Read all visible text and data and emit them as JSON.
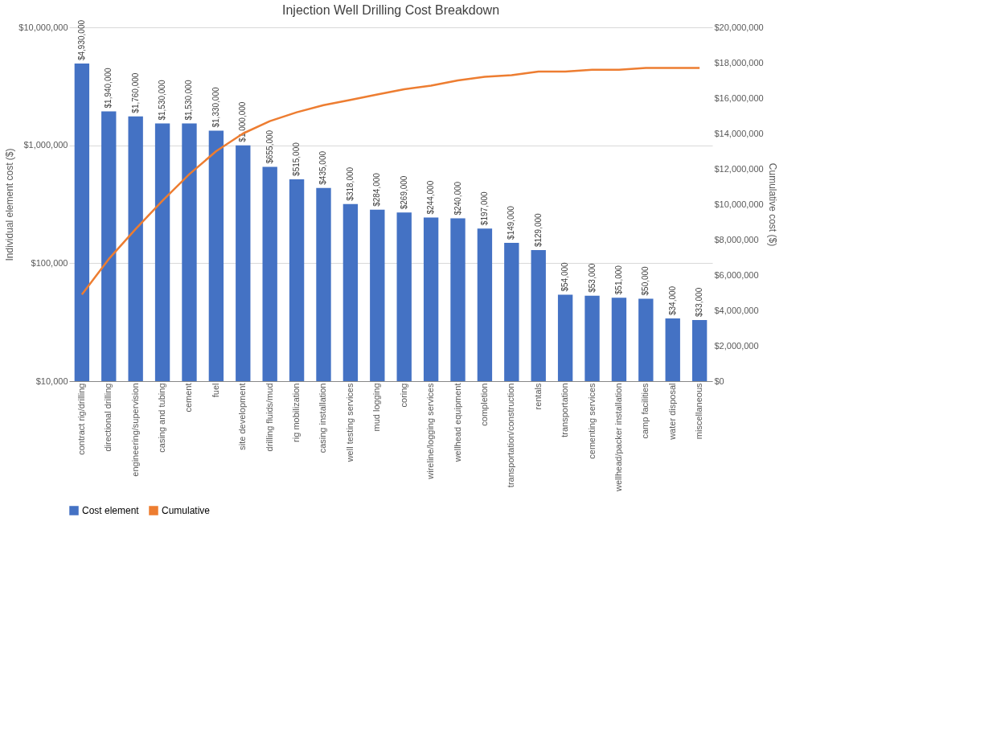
{
  "chart_data": {
    "type": "bar",
    "title": "Injection Well Drilling Cost Breakdown",
    "ylabel": "Individual element cost ($)",
    "y2label": "Cumulative cost ($)",
    "categories": [
      "contract rig/drilling",
      "directional drilling",
      "engineering/supervision",
      "casing and tubing",
      "cement",
      "fuel",
      "site development",
      "drilling fluids/mud",
      "rig mobilization",
      "casing installation",
      "well testing services",
      "mud logging",
      "coring",
      "wireline/logging services",
      "wellhead equipment",
      "completion",
      "transportation/construction",
      "rentals",
      "transportation",
      "cementing services",
      "wellhead/packer installation",
      "camp facilities",
      "water disposal",
      "miscellaneous"
    ],
    "series": [
      {
        "name": "Cost element",
        "color": "#4472c4",
        "values": [
          4930000,
          1940000,
          1760000,
          1530000,
          1530000,
          1330000,
          1000000,
          655000,
          515000,
          435000,
          318000,
          284000,
          269000,
          244000,
          240000,
          197000,
          149000,
          129000,
          54000,
          53000,
          51000,
          50000,
          34000,
          33000
        ],
        "value_labels": [
          "$4,930,000",
          "$1,940,000",
          "$1,760,000",
          "$1,530,000",
          "$1,530,000",
          "$1,330,000",
          "$1,000,000",
          "$655,000",
          "$515,000",
          "$435,000",
          "$318,000",
          "$284,000",
          "$269,000",
          "$244,000",
          "$240,000",
          "$197,000",
          "$149,000",
          "$129,000",
          "$54,000",
          "$53,000",
          "$51,000",
          "$50,000",
          "$34,000",
          "$33,000"
        ]
      },
      {
        "name": "Cumulative",
        "type": "line",
        "axis": "y2",
        "color": "#ed7d31",
        "values": [
          4900000,
          6900000,
          8600000,
          10200000,
          11700000,
          13000000,
          14000000,
          14700000,
          15200000,
          15600000,
          15900000,
          16200000,
          16500000,
          16700000,
          17000000,
          17200000,
          17300000,
          17500000,
          17500000,
          17600000,
          17600000,
          17700000,
          17700000,
          17700000
        ]
      }
    ],
    "log": "y",
    "ylim": [
      10000,
      10000000
    ],
    "yticks": [
      {
        "value": 10000,
        "label": "$10,000"
      },
      {
        "value": 100000,
        "label": "$100,000"
      },
      {
        "value": 1000000,
        "label": "$1,000,000"
      },
      {
        "value": 10000000,
        "label": "$10,000,000"
      }
    ],
    "y2lim": [
      0,
      20000000
    ],
    "y2ticks": [
      {
        "value": 0,
        "label": "$0"
      },
      {
        "value": 2000000,
        "label": "$2,000,000"
      },
      {
        "value": 4000000,
        "label": "$4,000,000"
      },
      {
        "value": 6000000,
        "label": "$6,000,000"
      },
      {
        "value": 8000000,
        "label": "$8,000,000"
      },
      {
        "value": 10000000,
        "label": "$10,000,000"
      },
      {
        "value": 12000000,
        "label": "$12,000,000"
      },
      {
        "value": 14000000,
        "label": "$14,000,000"
      },
      {
        "value": 16000000,
        "label": "$16,000,000"
      },
      {
        "value": 18000000,
        "label": "$18,000,000"
      },
      {
        "value": 20000000,
        "label": "$20,000,000"
      }
    ],
    "grid": "y",
    "legend": "bottom",
    "marker": "none",
    "line_style": "solid"
  }
}
